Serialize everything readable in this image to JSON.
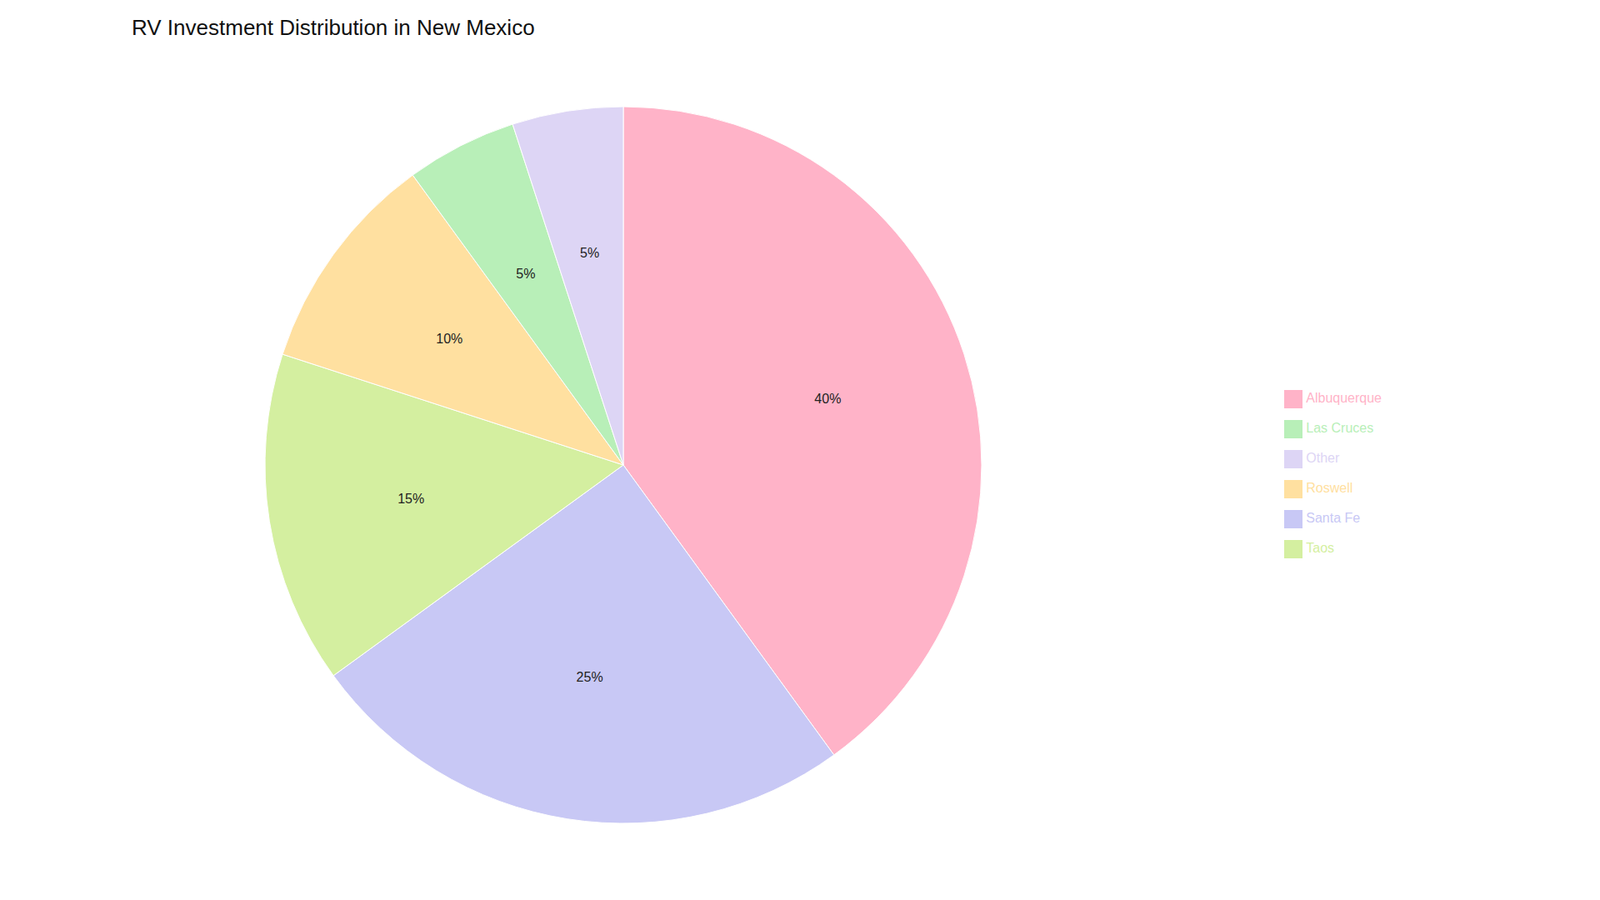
{
  "chart_data": {
    "type": "pie",
    "title": "RV Investment Distribution in New Mexico",
    "categories": [
      "Albuquerque",
      "Santa Fe",
      "Taos",
      "Roswell",
      "Las Cruces",
      "Other"
    ],
    "values": [
      40,
      25,
      15,
      10,
      5,
      5
    ],
    "value_labels": [
      "40%",
      "25%",
      "15%",
      "10%",
      "5%",
      "5%"
    ],
    "colors": [
      "#FFB3C8",
      "#C8C8F5",
      "#D4EFA0",
      "#FFE0A0",
      "#B8EFB8",
      "#DDD5F5"
    ],
    "data_labels": true,
    "legend": "right"
  }
}
